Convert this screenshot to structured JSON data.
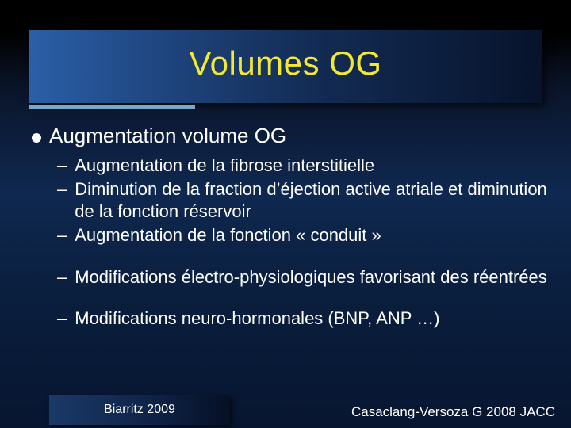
{
  "title": "Volumes OG",
  "title_color": "#f2e930",
  "title_fontsize": 42,
  "title_bar_gradient": [
    "#2b5fa8",
    "#1f4680",
    "#132c55",
    "#07132b"
  ],
  "underline_color": "#7aa8c8",
  "background_gradient": [
    "#000000",
    "#0a1428",
    "#0f2850",
    "#0a1e3d",
    "#071530"
  ],
  "main_bullet": "Augmentation volume OG",
  "main_fontsize": 26,
  "sub_fontsize": 22,
  "text_color": "#ffffff",
  "sub_items_group1": [
    "Augmentation de la fibrose interstitielle",
    "Diminution de la fraction d’éjection active atriale et diminution de la fonction réservoir",
    "Augmentation de la fonction « conduit »"
  ],
  "sub_items_group2": [
    "Modifications électro-physiologiques favorisant des réentrées"
  ],
  "sub_items_group3": [
    "Modifications neuro-hormonales (BNP, ANP …)"
  ],
  "footer_left": "Biarritz 2009",
  "footer_right": "Casaclang-Versoza G 2008 JACC",
  "footer_fontsize": 16
}
